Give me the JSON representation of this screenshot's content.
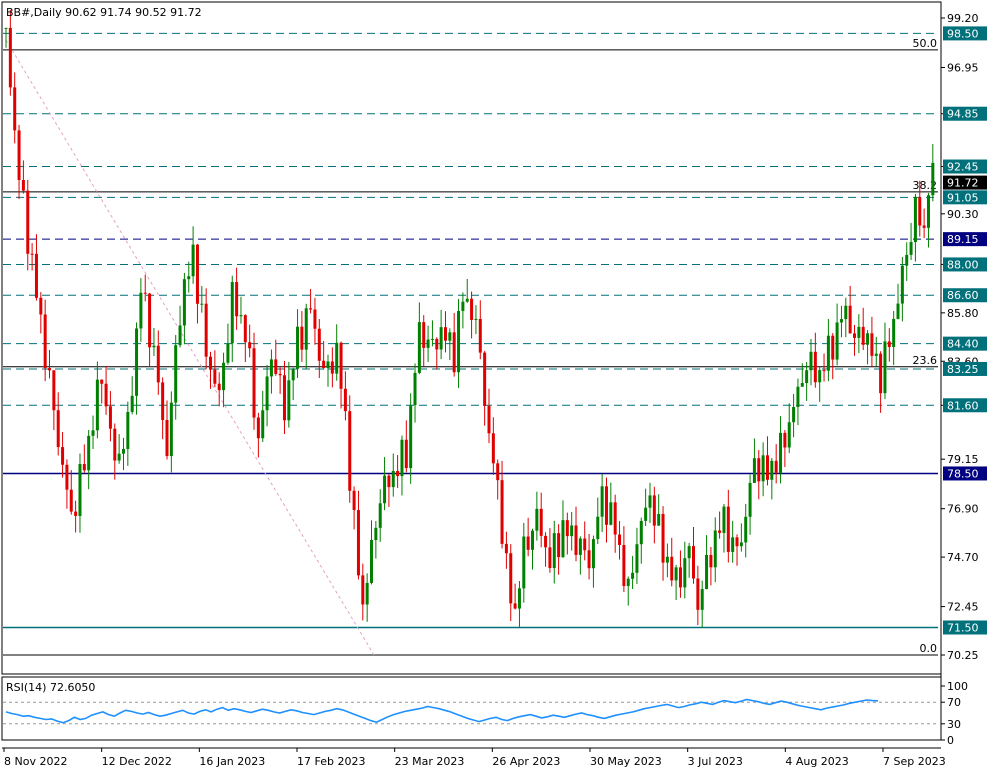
{
  "chart_data": {
    "type": "candlestick",
    "symbol_header": "BB#,Daily  90.62 91.74 90.52 91.72",
    "last_price": 91.72,
    "price_axis": {
      "ylim": [
        70.25,
        99.2
      ],
      "tick_labels": [
        "99.20",
        "96.95",
        "94.85",
        "92.45",
        "90.30",
        "88.00",
        "85.80",
        "83.60",
        "81.60",
        "79.15",
        "76.90",
        "74.70",
        "72.45",
        "70.25"
      ]
    },
    "x_axis": {
      "tick_labels": [
        "8 Nov 2022",
        "12 Dec 2022",
        "16 Jan 2023",
        "17 Feb 2023",
        "23 Mar 2023",
        "26 Apr 2023",
        "30 May 2023",
        "3 Jul 2023",
        "4 Aug 2023",
        "7 Sep 2023"
      ]
    },
    "horizontal_levels": [
      {
        "value": 98.5,
        "label": "98.50",
        "style": "dashed",
        "color": "#00707a"
      },
      {
        "value": 94.85,
        "label": "94.85",
        "style": "dashed",
        "color": "#00707a"
      },
      {
        "value": 92.45,
        "label": "92.45",
        "style": "dashed",
        "color": "#00707a"
      },
      {
        "value": 91.05,
        "label": "91.05",
        "style": "dashed",
        "color": "#00707a"
      },
      {
        "value": 89.15,
        "label": "89.15",
        "style": "dashed",
        "color": "#000080"
      },
      {
        "value": 88.0,
        "label": "88.00",
        "style": "dashed",
        "color": "#00707a"
      },
      {
        "value": 86.6,
        "label": "86.60",
        "style": "dashed",
        "color": "#00707a"
      },
      {
        "value": 84.4,
        "label": "84.40",
        "style": "dashed",
        "color": "#00707a"
      },
      {
        "value": 83.25,
        "label": "83.25",
        "style": "dashed",
        "color": "#00707a"
      },
      {
        "value": 81.6,
        "label": "81.60",
        "style": "dashed",
        "color": "#00707a"
      },
      {
        "value": 78.5,
        "label": "78.50",
        "style": "solid",
        "color": "#000080"
      },
      {
        "value": 71.5,
        "label": "71.50",
        "style": "solid",
        "color": "#00707a"
      }
    ],
    "fibonacci": [
      {
        "level": "50.0",
        "price": 97.75
      },
      {
        "level": "38.2",
        "price": 91.3
      },
      {
        "level": "23.6",
        "price": 83.35
      },
      {
        "level": "0.0",
        "price": 70.25
      }
    ],
    "rsi": {
      "label": "RSI(14) 72.6050",
      "ylim": [
        0,
        100
      ],
      "tick_labels": [
        "100",
        "70",
        "30",
        "0"
      ],
      "levels": [
        70,
        30
      ],
      "series_color": "#1e90ff",
      "values": [
        52,
        49,
        47,
        44,
        45,
        42,
        40,
        38,
        39,
        35,
        32,
        36,
        42,
        38,
        40,
        46,
        49,
        52,
        47,
        44,
        50,
        55,
        53,
        50,
        48,
        51,
        47,
        44,
        46,
        49,
        52,
        55,
        50,
        48,
        53,
        56,
        52,
        57,
        60,
        55,
        58,
        56,
        53,
        51,
        54,
        57,
        55,
        52,
        50,
        53,
        56,
        54,
        51,
        49,
        47,
        50,
        53,
        55,
        58,
        56,
        52,
        48,
        44,
        40,
        36,
        33,
        38,
        43,
        47,
        50,
        53,
        55,
        57,
        59,
        62,
        60,
        58,
        55,
        52,
        48,
        44,
        40,
        37,
        34,
        37,
        40,
        42,
        38,
        36,
        40,
        43,
        45,
        47,
        44,
        41,
        43,
        46,
        44,
        42,
        45,
        48,
        50,
        47,
        45,
        42,
        40,
        43,
        46,
        48,
        50,
        52,
        55,
        58,
        60,
        62,
        64,
        66,
        63,
        60,
        62,
        65,
        67,
        70,
        68,
        66,
        70,
        73,
        71,
        69,
        72,
        75,
        73,
        71,
        68,
        66,
        69,
        72,
        70,
        67,
        64,
        62,
        60,
        58,
        56,
        59,
        61,
        63,
        65,
        68,
        70,
        72,
        74,
        73,
        72.6
      ]
    },
    "colors": {
      "bull": "#008000",
      "bear": "#e00000",
      "fib": "#000000",
      "trend": "#e6a0c8"
    }
  }
}
